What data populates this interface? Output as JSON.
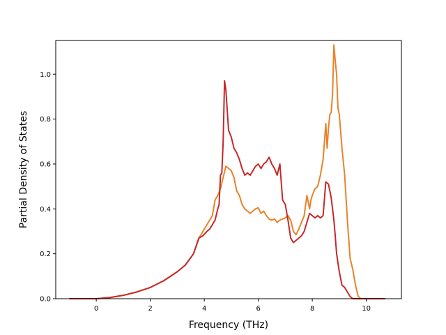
{
  "chart_data": {
    "type": "line",
    "title": "",
    "xlabel": "Frequency (THz)",
    "ylabel": "Partial Density of States",
    "xlim": [
      -1.5,
      11.3
    ],
    "ylim": [
      0.0,
      1.15
    ],
    "xticks": [
      0,
      2,
      4,
      6,
      8,
      10
    ],
    "yticks": [
      0.0,
      0.2,
      0.4,
      0.6,
      0.8,
      1.0
    ],
    "xtick_labels": [
      "0",
      "2",
      "4",
      "6",
      "8",
      "10"
    ],
    "ytick_labels": [
      "0.0",
      "0.2",
      "0.4",
      "0.6",
      "0.8",
      "1.0"
    ],
    "grid": false,
    "legend": false,
    "series": [
      {
        "color": "#e8832a",
        "x": [
          -1.0,
          0.0,
          0.5,
          1.0,
          1.5,
          2.0,
          2.5,
          3.0,
          3.3,
          3.6,
          3.8,
          3.95,
          4.1,
          4.2,
          4.3,
          4.4,
          4.5,
          4.6,
          4.7,
          4.8,
          4.9,
          5.0,
          5.1,
          5.2,
          5.3,
          5.4,
          5.5,
          5.6,
          5.7,
          5.8,
          5.9,
          6.0,
          6.1,
          6.2,
          6.3,
          6.4,
          6.5,
          6.6,
          6.7,
          6.8,
          6.9,
          7.0,
          7.1,
          7.2,
          7.3,
          7.4,
          7.5,
          7.6,
          7.7,
          7.8,
          7.9,
          7.95,
          8.0,
          8.1,
          8.2,
          8.3,
          8.4,
          8.5,
          8.55,
          8.6,
          8.65,
          8.7,
          8.75,
          8.8,
          8.85,
          8.9,
          8.95,
          9.0,
          9.1,
          9.2,
          9.3,
          9.4,
          9.5,
          9.6,
          9.7,
          9.8,
          10.0,
          10.7
        ],
        "y": [
          0.0,
          0.0,
          0.005,
          0.015,
          0.03,
          0.05,
          0.08,
          0.12,
          0.15,
          0.2,
          0.27,
          0.3,
          0.33,
          0.35,
          0.37,
          0.44,
          0.46,
          0.49,
          0.54,
          0.59,
          0.58,
          0.57,
          0.54,
          0.48,
          0.46,
          0.42,
          0.4,
          0.39,
          0.38,
          0.39,
          0.4,
          0.405,
          0.38,
          0.39,
          0.37,
          0.355,
          0.35,
          0.355,
          0.34,
          0.35,
          0.355,
          0.36,
          0.37,
          0.35,
          0.3,
          0.285,
          0.31,
          0.34,
          0.37,
          0.46,
          0.4,
          0.44,
          0.46,
          0.49,
          0.5,
          0.55,
          0.62,
          0.78,
          0.67,
          0.76,
          0.82,
          0.83,
          0.91,
          1.13,
          1.06,
          1.0,
          0.85,
          0.82,
          0.67,
          0.55,
          0.35,
          0.18,
          0.13,
          0.06,
          0.01,
          0.0,
          0.0,
          0.0
        ]
      },
      {
        "color": "#c62828",
        "x": [
          -1.0,
          0.0,
          0.5,
          1.0,
          1.5,
          2.0,
          2.5,
          3.0,
          3.3,
          3.6,
          3.8,
          3.95,
          4.1,
          4.2,
          4.3,
          4.4,
          4.5,
          4.55,
          4.6,
          4.65,
          4.7,
          4.75,
          4.8,
          4.9,
          5.0,
          5.1,
          5.2,
          5.3,
          5.4,
          5.5,
          5.6,
          5.7,
          5.8,
          5.9,
          6.0,
          6.1,
          6.2,
          6.3,
          6.4,
          6.5,
          6.6,
          6.7,
          6.8,
          6.9,
          7.0,
          7.1,
          7.2,
          7.3,
          7.4,
          7.5,
          7.6,
          7.7,
          7.8,
          7.9,
          8.0,
          8.1,
          8.2,
          8.3,
          8.4,
          8.5,
          8.6,
          8.7,
          8.8,
          8.85,
          8.9,
          9.0,
          9.1,
          9.2,
          9.3,
          9.4,
          9.5,
          9.6,
          9.7,
          9.8,
          10.0,
          10.7
        ],
        "y": [
          0.0,
          0.0,
          0.005,
          0.015,
          0.03,
          0.05,
          0.08,
          0.12,
          0.15,
          0.2,
          0.27,
          0.28,
          0.3,
          0.31,
          0.33,
          0.35,
          0.4,
          0.42,
          0.55,
          0.56,
          0.7,
          0.97,
          0.93,
          0.75,
          0.72,
          0.67,
          0.65,
          0.62,
          0.58,
          0.55,
          0.56,
          0.55,
          0.57,
          0.59,
          0.6,
          0.58,
          0.6,
          0.61,
          0.63,
          0.6,
          0.58,
          0.55,
          0.6,
          0.44,
          0.42,
          0.35,
          0.27,
          0.25,
          0.26,
          0.27,
          0.28,
          0.3,
          0.34,
          0.38,
          0.37,
          0.36,
          0.37,
          0.36,
          0.37,
          0.52,
          0.51,
          0.45,
          0.35,
          0.28,
          0.2,
          0.12,
          0.06,
          0.05,
          0.03,
          0.01,
          0.0,
          0.0,
          0.0,
          0.0,
          0.0,
          0.0
        ]
      }
    ]
  }
}
